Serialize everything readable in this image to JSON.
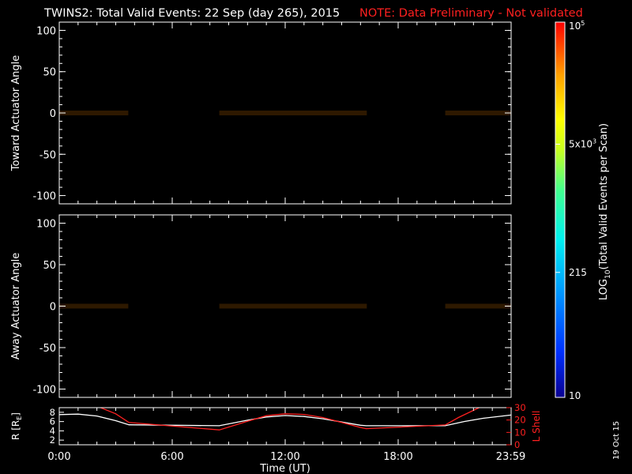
{
  "header": {
    "title": "TWINS2: Total Valid Events: 22 Sep (day 265), 2015",
    "note": "NOTE: Data Preliminary - Not validated"
  },
  "footer": {
    "date_stamp": "19 Oct 15"
  },
  "colors": {
    "note": "#ff2020",
    "lshell": "#ff2020",
    "radius": "#ffffff",
    "frame": "#ffffff",
    "background": "#000000"
  },
  "chart_data": [
    {
      "type": "heatmap",
      "ylabel": "Toward Actuator Angle",
      "ylim": [
        -110,
        110
      ],
      "yticks": [
        -100,
        -50,
        0,
        50,
        100
      ],
      "data_ylim": [
        -90,
        90
      ],
      "xlim": [
        0,
        24
      ],
      "data_blocks": [
        {
          "start": "00:00",
          "end": "03:40"
        },
        {
          "start": "08:30",
          "end": "16:20"
        },
        {
          "start": "20:30",
          "end": "23:59"
        }
      ]
    },
    {
      "type": "heatmap",
      "ylabel": "Away Actuator Angle",
      "ylim": [
        -110,
        110
      ],
      "yticks": [
        -100,
        -50,
        0,
        50,
        100
      ],
      "data_ylim": [
        -90,
        90
      ],
      "xlim": [
        0,
        24
      ],
      "data_blocks": [
        {
          "start": "00:00",
          "end": "03:40"
        },
        {
          "start": "08:30",
          "end": "16:20"
        },
        {
          "start": "20:30",
          "end": "23:59"
        }
      ]
    },
    {
      "type": "line",
      "xlabel": "Time (UT)",
      "ylabel": "R [RE]",
      "ylabel_main": "R [R",
      "ylabel_sub": "E",
      "ylabel_end": "]",
      "ylim": [
        1,
        9
      ],
      "yticks": [
        2,
        4,
        6,
        8
      ],
      "y2label": "L Shell",
      "y2lim": [
        0,
        30
      ],
      "y2ticks": [
        0,
        10,
        20,
        30
      ],
      "xlim": [
        0,
        24
      ],
      "xticks": [
        {
          "value": 0,
          "label": "0:00"
        },
        {
          "value": 6,
          "label": "6:00"
        },
        {
          "value": 12,
          "label": "12:00"
        },
        {
          "value": 18,
          "label": "18:00"
        },
        {
          "value": 23.98,
          "label": "23:59"
        }
      ],
      "series": [
        {
          "axis": "left",
          "x": [
            0,
            1,
            2,
            3,
            3.7,
            8.5,
            10,
            11,
            12,
            13,
            14,
            15,
            16,
            16.3,
            20.5,
            21.5,
            22.5,
            23.98
          ],
          "y": [
            7.5,
            7.6,
            7.2,
            6.2,
            5.3,
            5.1,
            6.3,
            7.0,
            7.3,
            7.1,
            6.6,
            5.9,
            5.2,
            5.1,
            5.1,
            6.0,
            6.7,
            7.4
          ]
        },
        {
          "axis": "right",
          "x": [
            2.2,
            3.0,
            3.7,
            8.5,
            10,
            11,
            12,
            13,
            14,
            15,
            16,
            16.3,
            20.5,
            21.2,
            22.3
          ],
          "y": [
            30,
            25,
            18,
            12,
            19,
            23.5,
            25,
            24.5,
            22,
            18,
            14,
            13,
            16,
            22,
            30
          ]
        }
      ]
    }
  ],
  "colorbar": {
    "label": "LOG10(Total Valid Events per Scan)",
    "label_pre": "LOG",
    "label_sub": "10",
    "label_post": "(Total Valid Events per Scan)",
    "ticks": [
      {
        "value": 100000,
        "base": "10",
        "exp": "5"
      },
      {
        "value": 5000,
        "base": "5x10",
        "exp": "3"
      },
      {
        "value": 215,
        "base": "215",
        "exp": ""
      },
      {
        "value": 10,
        "base": "10",
        "exp": ""
      }
    ],
    "min": 10,
    "max": 100000
  }
}
